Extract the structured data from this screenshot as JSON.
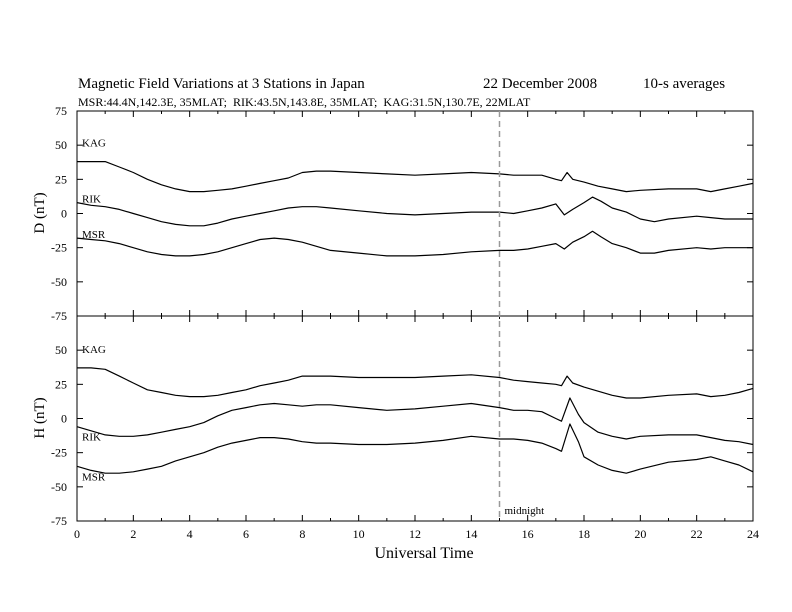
{
  "header": {
    "title": "Magnetic Field Variations at 3 Stations in Japan",
    "date": "22 December 2008",
    "averaging": "10-s averages",
    "stations": "MSR:44.4N,142.3E, 35MLAT;  RIK:43.5N,143.8E, 35MLAT;  KAG:31.5N,130.7E, 22MLAT"
  },
  "chart_data": [
    {
      "type": "line",
      "ylabel": "D (nT)",
      "ylim": [
        -75,
        75
      ],
      "yticks": [
        75,
        50,
        25,
        0,
        -25,
        -50,
        -75
      ],
      "xlim": [
        0,
        24
      ],
      "series": [
        {
          "name": "KAG",
          "x": [
            0,
            0.5,
            1,
            1.5,
            2,
            2.5,
            3,
            3.5,
            4,
            4.5,
            5,
            5.5,
            6,
            6.5,
            7,
            7.5,
            8,
            8.5,
            9,
            10,
            11,
            12,
            13,
            14,
            15,
            15.5,
            16,
            16.5,
            17,
            17.2,
            17.4,
            17.6,
            18,
            18.5,
            19,
            19.5,
            20,
            21,
            22,
            22.5,
            23,
            23.5,
            24
          ],
          "y": [
            38,
            38,
            38,
            34,
            30,
            25,
            21,
            18,
            16,
            16,
            17,
            18,
            20,
            22,
            24,
            26,
            30,
            31,
            31,
            30,
            29,
            28,
            29,
            30,
            29,
            28,
            28,
            28,
            25,
            24,
            30,
            25,
            23,
            20,
            18,
            16,
            17,
            18,
            18,
            16,
            18,
            20,
            22
          ]
        },
        {
          "name": "RIK",
          "x": [
            0,
            0.5,
            1,
            1.5,
            2,
            2.5,
            3,
            3.5,
            4,
            4.5,
            5,
            5.5,
            6,
            6.5,
            7,
            7.5,
            8,
            8.5,
            9,
            10,
            11,
            12,
            13,
            14,
            15,
            15.5,
            16,
            16.5,
            17,
            17.3,
            17.6,
            18,
            18.3,
            18.6,
            19,
            19.5,
            20,
            20.5,
            21,
            22,
            22.5,
            23,
            23.5,
            24
          ],
          "y": [
            8,
            6,
            5,
            3,
            0,
            -3,
            -6,
            -8,
            -9,
            -9,
            -7,
            -4,
            -2,
            0,
            2,
            4,
            5,
            5,
            4,
            2,
            0,
            -1,
            0,
            1,
            1,
            0,
            2,
            4,
            7,
            -1,
            3,
            8,
            12,
            9,
            4,
            1,
            -4,
            -6,
            -4,
            -2,
            -3,
            -4,
            -4,
            -4
          ]
        },
        {
          "name": "MSR",
          "x": [
            0,
            0.5,
            1,
            1.5,
            2,
            2.5,
            3,
            3.5,
            4,
            4.5,
            5,
            5.5,
            6,
            6.5,
            7,
            7.5,
            8,
            8.5,
            9,
            10,
            11,
            12,
            13,
            14,
            15,
            15.5,
            16,
            16.5,
            17,
            17.3,
            17.6,
            18,
            18.3,
            18.6,
            19,
            19.5,
            20,
            20.5,
            21,
            22,
            22.5,
            23,
            23.5,
            24
          ],
          "y": [
            -18,
            -19,
            -20,
            -22,
            -25,
            -28,
            -30,
            -31,
            -31,
            -30,
            -28,
            -25,
            -22,
            -19,
            -18,
            -19,
            -21,
            -24,
            -27,
            -29,
            -31,
            -31,
            -30,
            -28,
            -27,
            -27,
            -26,
            -24,
            -22,
            -26,
            -21,
            -17,
            -13,
            -17,
            -22,
            -25,
            -29,
            -29,
            -27,
            -25,
            -26,
            -25,
            -25,
            -25
          ]
        }
      ]
    },
    {
      "type": "line",
      "ylabel": "H (nT)",
      "xlabel": "Universal Time",
      "ylim": [
        -75,
        75
      ],
      "yticks": [
        75,
        50,
        25,
        0,
        -25,
        -50,
        -75
      ],
      "xlim": [
        0,
        24
      ],
      "xticks": [
        0,
        2,
        4,
        6,
        8,
        10,
        12,
        14,
        16,
        18,
        20,
        22,
        24
      ],
      "annotation": {
        "x": 15,
        "label": "midnight"
      },
      "series": [
        {
          "name": "KAG",
          "x": [
            0,
            0.5,
            1,
            1.5,
            2,
            2.5,
            3,
            3.5,
            4,
            4.5,
            5,
            5.5,
            6,
            6.5,
            7,
            7.5,
            8,
            8.5,
            9,
            10,
            11,
            12,
            13,
            14,
            15,
            15.5,
            16,
            16.5,
            17,
            17.2,
            17.4,
            17.6,
            18,
            18.5,
            19,
            19.5,
            20,
            21,
            22,
            22.5,
            23,
            23.5,
            24
          ],
          "y": [
            37,
            37,
            36,
            31,
            26,
            21,
            19,
            17,
            16,
            16,
            17,
            19,
            21,
            24,
            26,
            28,
            31,
            31,
            31,
            30,
            30,
            30,
            31,
            32,
            30,
            28,
            27,
            26,
            25,
            24,
            31,
            26,
            23,
            20,
            17,
            15,
            15,
            17,
            18,
            16,
            17,
            19,
            22
          ]
        },
        {
          "name": "RIK",
          "x": [
            0,
            0.5,
            1,
            1.5,
            2,
            2.5,
            3,
            3.5,
            4,
            4.5,
            5,
            5.5,
            6,
            6.5,
            7,
            7.5,
            8,
            8.5,
            9,
            10,
            11,
            12,
            13,
            14,
            15,
            15.5,
            16,
            16.5,
            17,
            17.2,
            17.5,
            17.8,
            18,
            18.5,
            19,
            19.5,
            20,
            21,
            22,
            22.5,
            23,
            23.5,
            24
          ],
          "y": [
            -6,
            -9,
            -12,
            -13,
            -13,
            -12,
            -10,
            -8,
            -6,
            -3,
            2,
            6,
            8,
            10,
            11,
            10,
            9,
            10,
            10,
            8,
            6,
            7,
            9,
            11,
            8,
            6,
            6,
            5,
            0,
            -2,
            15,
            3,
            -3,
            -10,
            -13,
            -15,
            -13,
            -12,
            -12,
            -14,
            -16,
            -17,
            -19
          ]
        },
        {
          "name": "MSR",
          "x": [
            0,
            0.5,
            1,
            1.5,
            2,
            2.5,
            3,
            3.5,
            4,
            4.5,
            5,
            5.5,
            6,
            6.5,
            7,
            7.5,
            8,
            8.5,
            9,
            10,
            11,
            12,
            13,
            14,
            15,
            15.5,
            16,
            16.5,
            17,
            17.2,
            17.5,
            17.8,
            18,
            18.5,
            19,
            19.5,
            20,
            21,
            22,
            22.5,
            23,
            23.5,
            24
          ],
          "y": [
            -35,
            -38,
            -40,
            -40,
            -39,
            -37,
            -35,
            -31,
            -28,
            -25,
            -21,
            -18,
            -16,
            -14,
            -14,
            -15,
            -17,
            -18,
            -18,
            -19,
            -19,
            -18,
            -16,
            -13,
            -15,
            -15,
            -16,
            -18,
            -22,
            -24,
            -4,
            -17,
            -28,
            -34,
            -38,
            -40,
            -37,
            -32,
            -30,
            -28,
            -31,
            -34,
            -39
          ]
        }
      ]
    }
  ]
}
